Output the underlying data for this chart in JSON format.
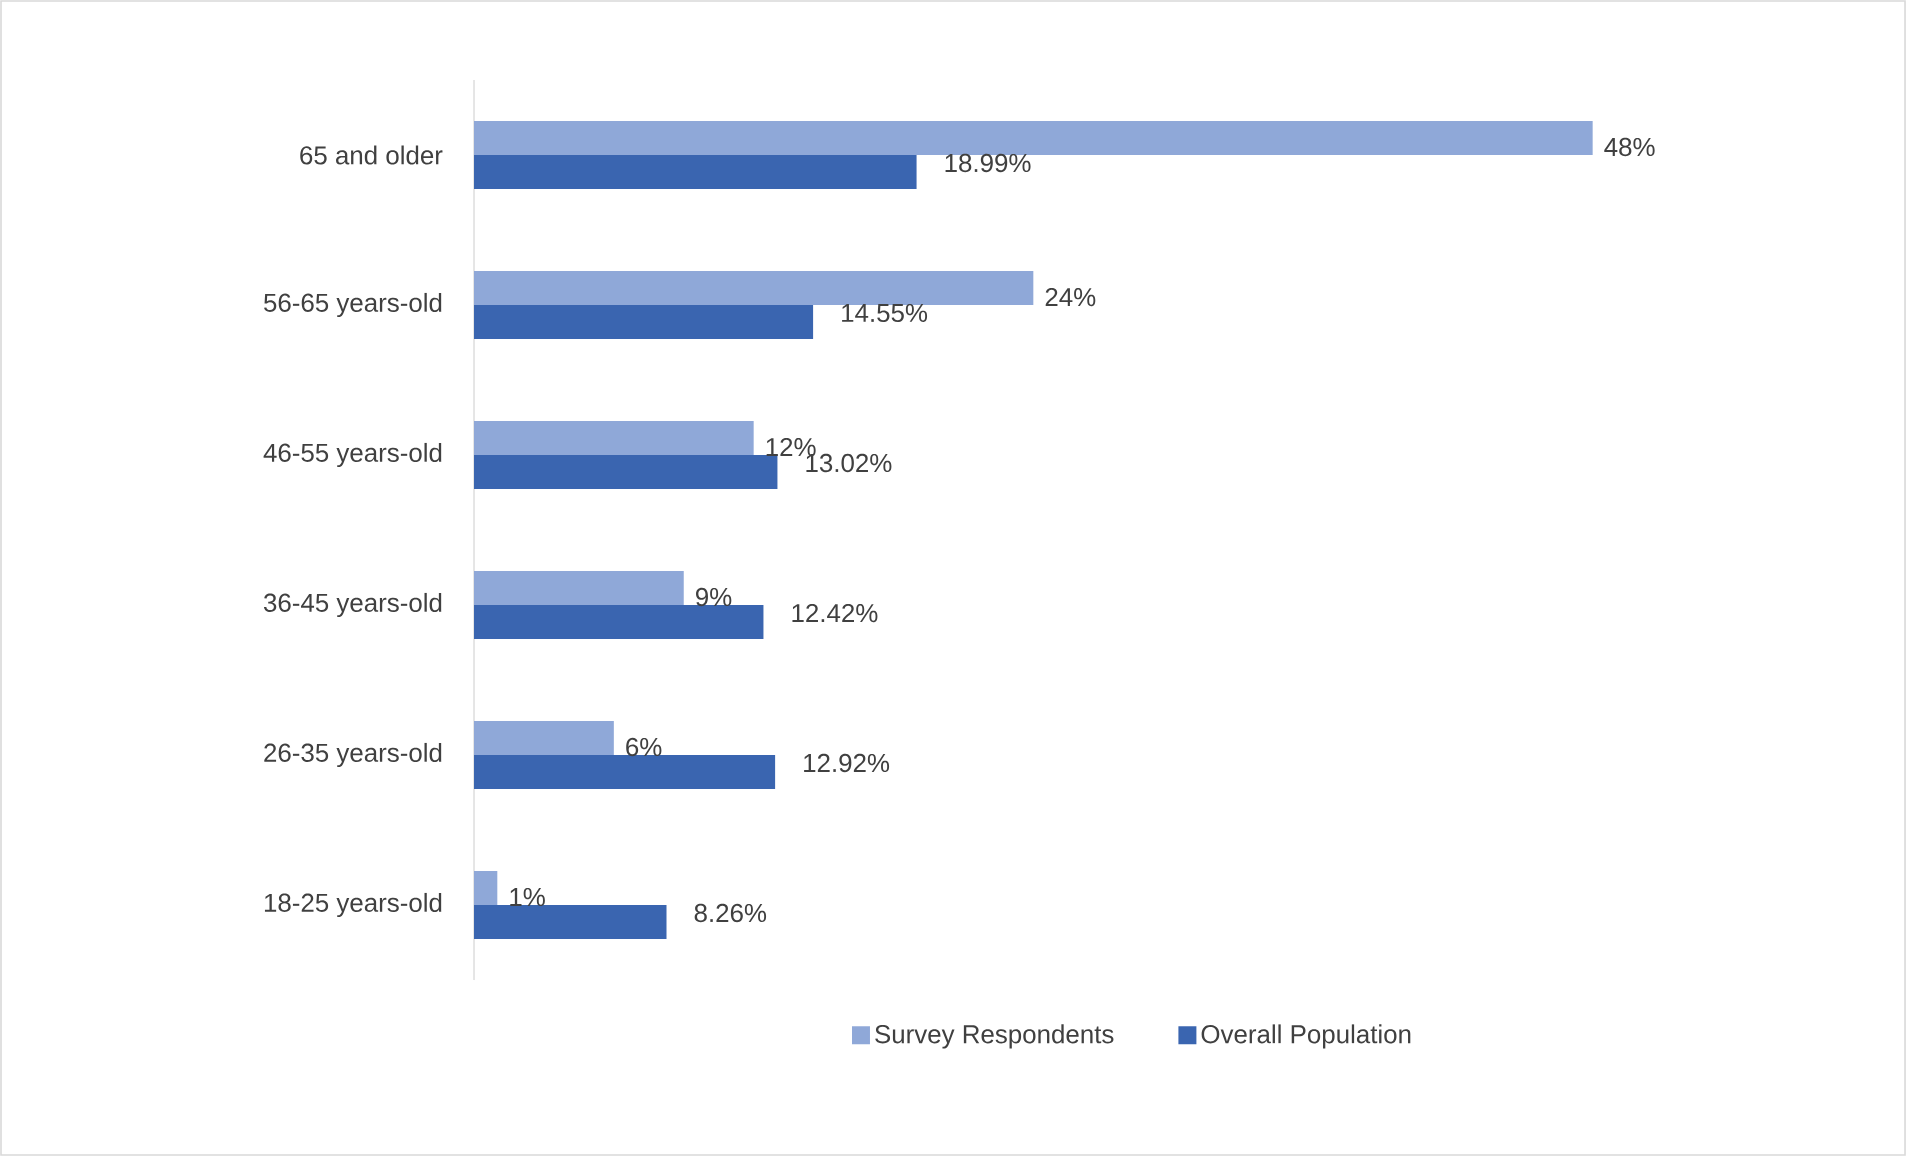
{
  "chart_data": {
    "type": "bar",
    "orientation": "horizontal",
    "categories": [
      "65 and older",
      "56-65 years-old",
      "46-55 years-old",
      "36-45 years-old",
      "26-35 years-old",
      "18-25 years-old"
    ],
    "series": [
      {
        "name": "Survey Respondents",
        "color": "#8fa8d8",
        "values": [
          48,
          24,
          12,
          9,
          6,
          1
        ],
        "value_labels": [
          "48%",
          "24%",
          "12%",
          "9%",
          "6%",
          "1%"
        ]
      },
      {
        "name": "Overall Population",
        "color": "#3a65b0",
        "values": [
          18.99,
          14.55,
          13.02,
          12.42,
          12.92,
          8.26
        ],
        "value_labels": [
          "18.99%",
          "14.55%",
          "13.02%",
          "12.42%",
          "12.92%",
          "8.26%"
        ]
      }
    ],
    "legend": "bottom"
  }
}
